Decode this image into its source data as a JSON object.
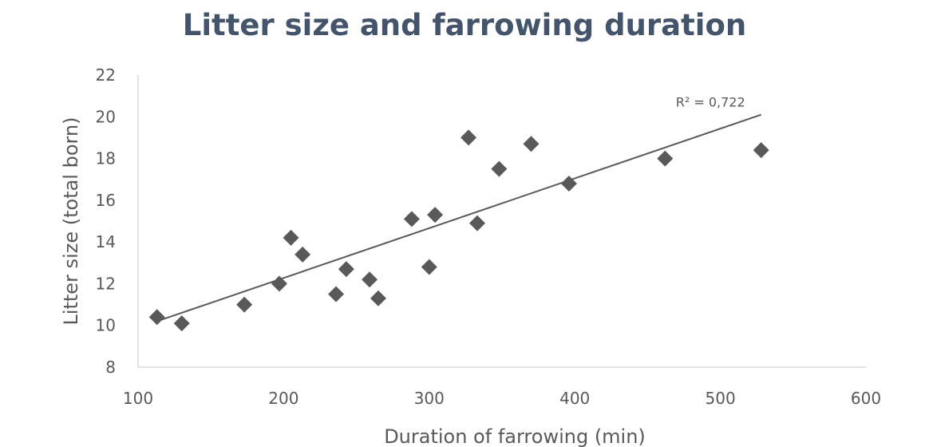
{
  "chart_data": {
    "type": "scatter",
    "title": "Litter size and farrowing duration",
    "xlabel": "Duration of farrowing (min)",
    "ylabel": "Litter size (total born)",
    "xlim": [
      100,
      600
    ],
    "ylim": [
      8,
      22
    ],
    "x_ticks": [
      "100",
      "200",
      "300",
      "400",
      "500",
      "600"
    ],
    "y_ticks": [
      "8",
      "10",
      "12",
      "14",
      "16",
      "18",
      "20",
      "22"
    ],
    "grid": false,
    "legend": "none",
    "series": [
      {
        "points": [
          {
            "x": 113,
            "y": 10.4
          },
          {
            "x": 130,
            "y": 10.1
          },
          {
            "x": 173,
            "y": 11.0
          },
          {
            "x": 197,
            "y": 12.0
          },
          {
            "x": 205,
            "y": 14.2
          },
          {
            "x": 213,
            "y": 13.4
          },
          {
            "x": 236,
            "y": 11.5
          },
          {
            "x": 243,
            "y": 12.7
          },
          {
            "x": 259,
            "y": 12.2
          },
          {
            "x": 265,
            "y": 11.3
          },
          {
            "x": 288,
            "y": 15.1
          },
          {
            "x": 300,
            "y": 12.8
          },
          {
            "x": 304,
            "y": 15.3
          },
          {
            "x": 327,
            "y": 19.0
          },
          {
            "x": 333,
            "y": 14.9
          },
          {
            "x": 348,
            "y": 17.5
          },
          {
            "x": 370,
            "y": 18.7
          },
          {
            "x": 396,
            "y": 16.8
          },
          {
            "x": 462,
            "y": 18.0
          },
          {
            "x": 528,
            "y": 18.4
          }
        ]
      }
    ],
    "trendline": {
      "type": "linear",
      "x": [
        113,
        528
      ],
      "y": [
        10.2,
        20.1
      ],
      "label": "R² = 0,722"
    },
    "colors": {
      "marker": "#595959",
      "trendline": "#595959",
      "title": "#44546a",
      "text": "#595959",
      "axis": "#d9d9d9"
    }
  }
}
